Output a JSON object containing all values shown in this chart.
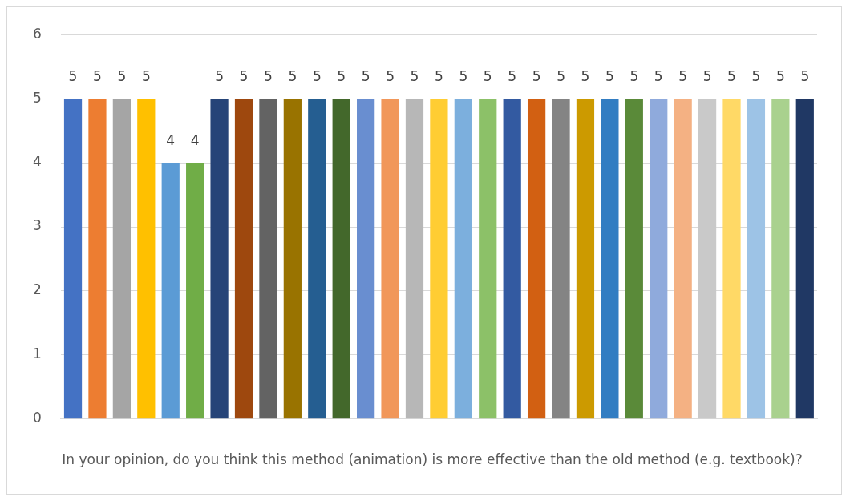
{
  "chart_data": {
    "type": "bar",
    "categories": [
      null,
      null,
      null,
      null,
      null,
      null,
      null,
      null,
      null,
      null,
      null,
      null,
      null,
      null,
      null,
      null,
      null,
      null,
      null,
      null,
      null,
      null,
      null,
      null,
      null,
      null,
      null,
      null,
      null,
      null,
      null
    ],
    "values": [
      5,
      5,
      5,
      5,
      4,
      4,
      5,
      5,
      5,
      5,
      5,
      5,
      5,
      5,
      5,
      5,
      5,
      5,
      5,
      5,
      5,
      5,
      5,
      5,
      5,
      5,
      5,
      5,
      5,
      5,
      5
    ],
    "colors": [
      "#4472c4",
      "#ed7d31",
      "#a5a5a5",
      "#ffc000",
      "#5b9bd5",
      "#70ad47",
      "#264478",
      "#9e480e",
      "#636363",
      "#997300",
      "#255e91",
      "#43682b",
      "#698ed0",
      "#f1975a",
      "#b7b7b7",
      "#ffcd33",
      "#7cafdd",
      "#8cc168",
      "#335aa1",
      "#d26012",
      "#848484",
      "#cc9a00",
      "#327dc2",
      "#5a8a39",
      "#8faadc",
      "#f4b183",
      "#c9c9c9",
      "#ffd966",
      "#9dc3e6",
      "#a9d18e",
      "#203864"
    ],
    "ylim": [
      0,
      6
    ],
    "yticks": [
      0,
      1,
      2,
      3,
      4,
      5,
      6
    ],
    "grid": "y",
    "data_labels": true,
    "legend": false,
    "xlabel": "In your opinion, do you think this method (animation) is more effective than the old method (e.g. textbook)?"
  }
}
